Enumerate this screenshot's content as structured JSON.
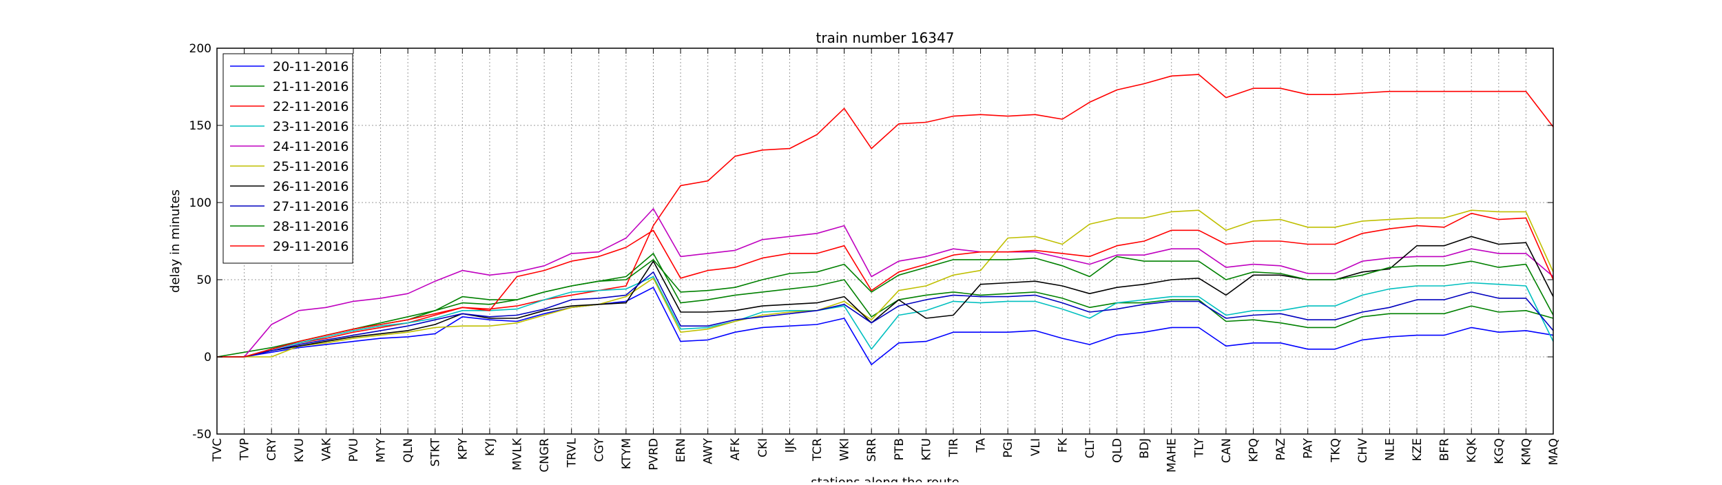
{
  "chart_data": {
    "type": "line",
    "title": "train number 16347",
    "xlabel": "stations along the route",
    "ylabel": "delay in minutes",
    "ylim": [
      -50,
      200
    ],
    "yticks": [
      -50,
      0,
      50,
      100,
      150,
      200
    ],
    "grid": true,
    "legend_position": "top-left",
    "categories": [
      "TVC",
      "TVP",
      "CRY",
      "KVU",
      "VAK",
      "PVU",
      "MYY",
      "QLN",
      "STKT",
      "KPY",
      "KYJ",
      "MVLK",
      "CNGR",
      "TRVL",
      "CGY",
      "KTYM",
      "PVRD",
      "ERN",
      "AWY",
      "AFK",
      "CKI",
      "IJK",
      "TCR",
      "WKI",
      "SRR",
      "PTB",
      "KTU",
      "TIR",
      "TA",
      "PGI",
      "VLI",
      "FK",
      "CLT",
      "QLD",
      "BDJ",
      "MAHE",
      "TLY",
      "CAN",
      "KPQ",
      "PAZ",
      "PAY",
      "TKQ",
      "CHV",
      "NLE",
      "KZE",
      "BFR",
      "KQK",
      "KGQ",
      "KMQ",
      "MAQ"
    ],
    "series": [
      {
        "name": "20-11-2016",
        "color": "#0000ff",
        "values": [
          0,
          0,
          3,
          6,
          8,
          10,
          12,
          13,
          15,
          26,
          24,
          23,
          28,
          32,
          34,
          36,
          45,
          10,
          11,
          16,
          19,
          20,
          21,
          25,
          -5,
          9,
          10,
          16,
          16,
          16,
          17,
          12,
          8,
          14,
          16,
          19,
          19,
          7,
          9,
          9,
          5,
          5,
          11,
          13,
          14,
          14,
          19,
          16,
          17,
          14
        ]
      },
      {
        "name": "21-11-2016",
        "color": "#008000",
        "values": [
          0,
          3,
          6,
          10,
          14,
          18,
          22,
          26,
          30,
          39,
          37,
          37,
          42,
          46,
          49,
          52,
          67,
          35,
          37,
          40,
          42,
          44,
          46,
          50,
          26,
          37,
          40,
          42,
          40,
          41,
          42,
          38,
          32,
          35,
          35,
          37,
          37,
          23,
          24,
          22,
          19,
          19,
          26,
          28,
          28,
          28,
          33,
          29,
          30,
          25
        ]
      },
      {
        "name": "22-11-2016",
        "color": "#ff0000",
        "values": [
          0,
          0,
          5,
          9,
          12,
          16,
          19,
          22,
          27,
          32,
          31,
          33,
          37,
          40,
          43,
          46,
          85,
          111,
          114,
          130,
          134,
          135,
          144,
          161,
          135,
          151,
          152,
          156,
          157,
          156,
          157,
          154,
          165,
          173,
          177,
          182,
          183,
          168,
          174,
          174,
          170,
          170,
          171,
          172,
          172,
          172,
          172,
          172,
          172,
          149
        ]
      },
      {
        "name": "23-11-2016",
        "color": "#00bfbf",
        "values": [
          0,
          0,
          5,
          9,
          13,
          17,
          20,
          22,
          25,
          30,
          30,
          31,
          37,
          42,
          43,
          44,
          52,
          18,
          19,
          23,
          29,
          30,
          30,
          33,
          5,
          27,
          30,
          36,
          35,
          36,
          36,
          31,
          25,
          35,
          37,
          39,
          39,
          27,
          30,
          30,
          33,
          33,
          40,
          44,
          46,
          46,
          48,
          47,
          46,
          10
        ]
      },
      {
        "name": "24-11-2016",
        "color": "#bf00bf",
        "values": [
          0,
          0,
          21,
          30,
          32,
          36,
          38,
          41,
          49,
          56,
          53,
          55,
          59,
          67,
          68,
          77,
          96,
          65,
          67,
          69,
          76,
          78,
          80,
          85,
          52,
          62,
          65,
          70,
          68,
          68,
          68,
          64,
          60,
          66,
          66,
          70,
          70,
          58,
          60,
          59,
          54,
          54,
          62,
          64,
          65,
          65,
          70,
          67,
          67,
          52
        ]
      },
      {
        "name": "25-11-2016",
        "color": "#bfbf00",
        "values": [
          0,
          0,
          0,
          7,
          9,
          12,
          14,
          16,
          19,
          20,
          20,
          22,
          27,
          32,
          34,
          39,
          51,
          16,
          18,
          23,
          27,
          29,
          30,
          36,
          24,
          43,
          46,
          53,
          56,
          77,
          78,
          73,
          86,
          90,
          90,
          94,
          95,
          82,
          88,
          89,
          84,
          84,
          88,
          89,
          90,
          90,
          95,
          94,
          94,
          55
        ]
      },
      {
        "name": "26-11-2016",
        "color": "#000000",
        "values": [
          0,
          0,
          4,
          7,
          10,
          13,
          15,
          17,
          21,
          28,
          25,
          25,
          30,
          33,
          34,
          35,
          62,
          29,
          29,
          30,
          33,
          34,
          35,
          39,
          22,
          37,
          25,
          27,
          47,
          48,
          49,
          46,
          41,
          45,
          47,
          50,
          51,
          40,
          53,
          53,
          50,
          50,
          55,
          57,
          72,
          72,
          78,
          73,
          74,
          39
        ]
      },
      {
        "name": "27-11-2016",
        "color": "#0000bf",
        "values": [
          0,
          0,
          4,
          8,
          11,
          14,
          17,
          20,
          24,
          28,
          26,
          27,
          31,
          37,
          38,
          40,
          55,
          20,
          20,
          24,
          26,
          28,
          30,
          34,
          22,
          33,
          37,
          40,
          39,
          39,
          40,
          35,
          29,
          31,
          34,
          36,
          36,
          25,
          27,
          28,
          24,
          24,
          29,
          32,
          37,
          37,
          42,
          38,
          38,
          17
        ]
      },
      {
        "name": "28-11-2016",
        "color": "#008000",
        "values": [
          0,
          0,
          5,
          10,
          14,
          18,
          21,
          24,
          30,
          35,
          34,
          37,
          42,
          46,
          49,
          50,
          63,
          42,
          43,
          45,
          50,
          54,
          55,
          60,
          42,
          53,
          58,
          63,
          63,
          63,
          64,
          59,
          52,
          65,
          62,
          62,
          62,
          50,
          55,
          54,
          50,
          50,
          53,
          58,
          59,
          59,
          62,
          58,
          60,
          27
        ]
      },
      {
        "name": "29-11-2016",
        "color": "#ff0000",
        "values": [
          0,
          0,
          5,
          10,
          14,
          18,
          21,
          24,
          28,
          32,
          30,
          52,
          56,
          62,
          65,
          71,
          82,
          51,
          56,
          58,
          64,
          67,
          67,
          72,
          43,
          55,
          60,
          66,
          68,
          68,
          69,
          67,
          65,
          72,
          75,
          82,
          82,
          73,
          75,
          75,
          73,
          73,
          80,
          83,
          85,
          84,
          93,
          89,
          90,
          50
        ]
      }
    ]
  }
}
